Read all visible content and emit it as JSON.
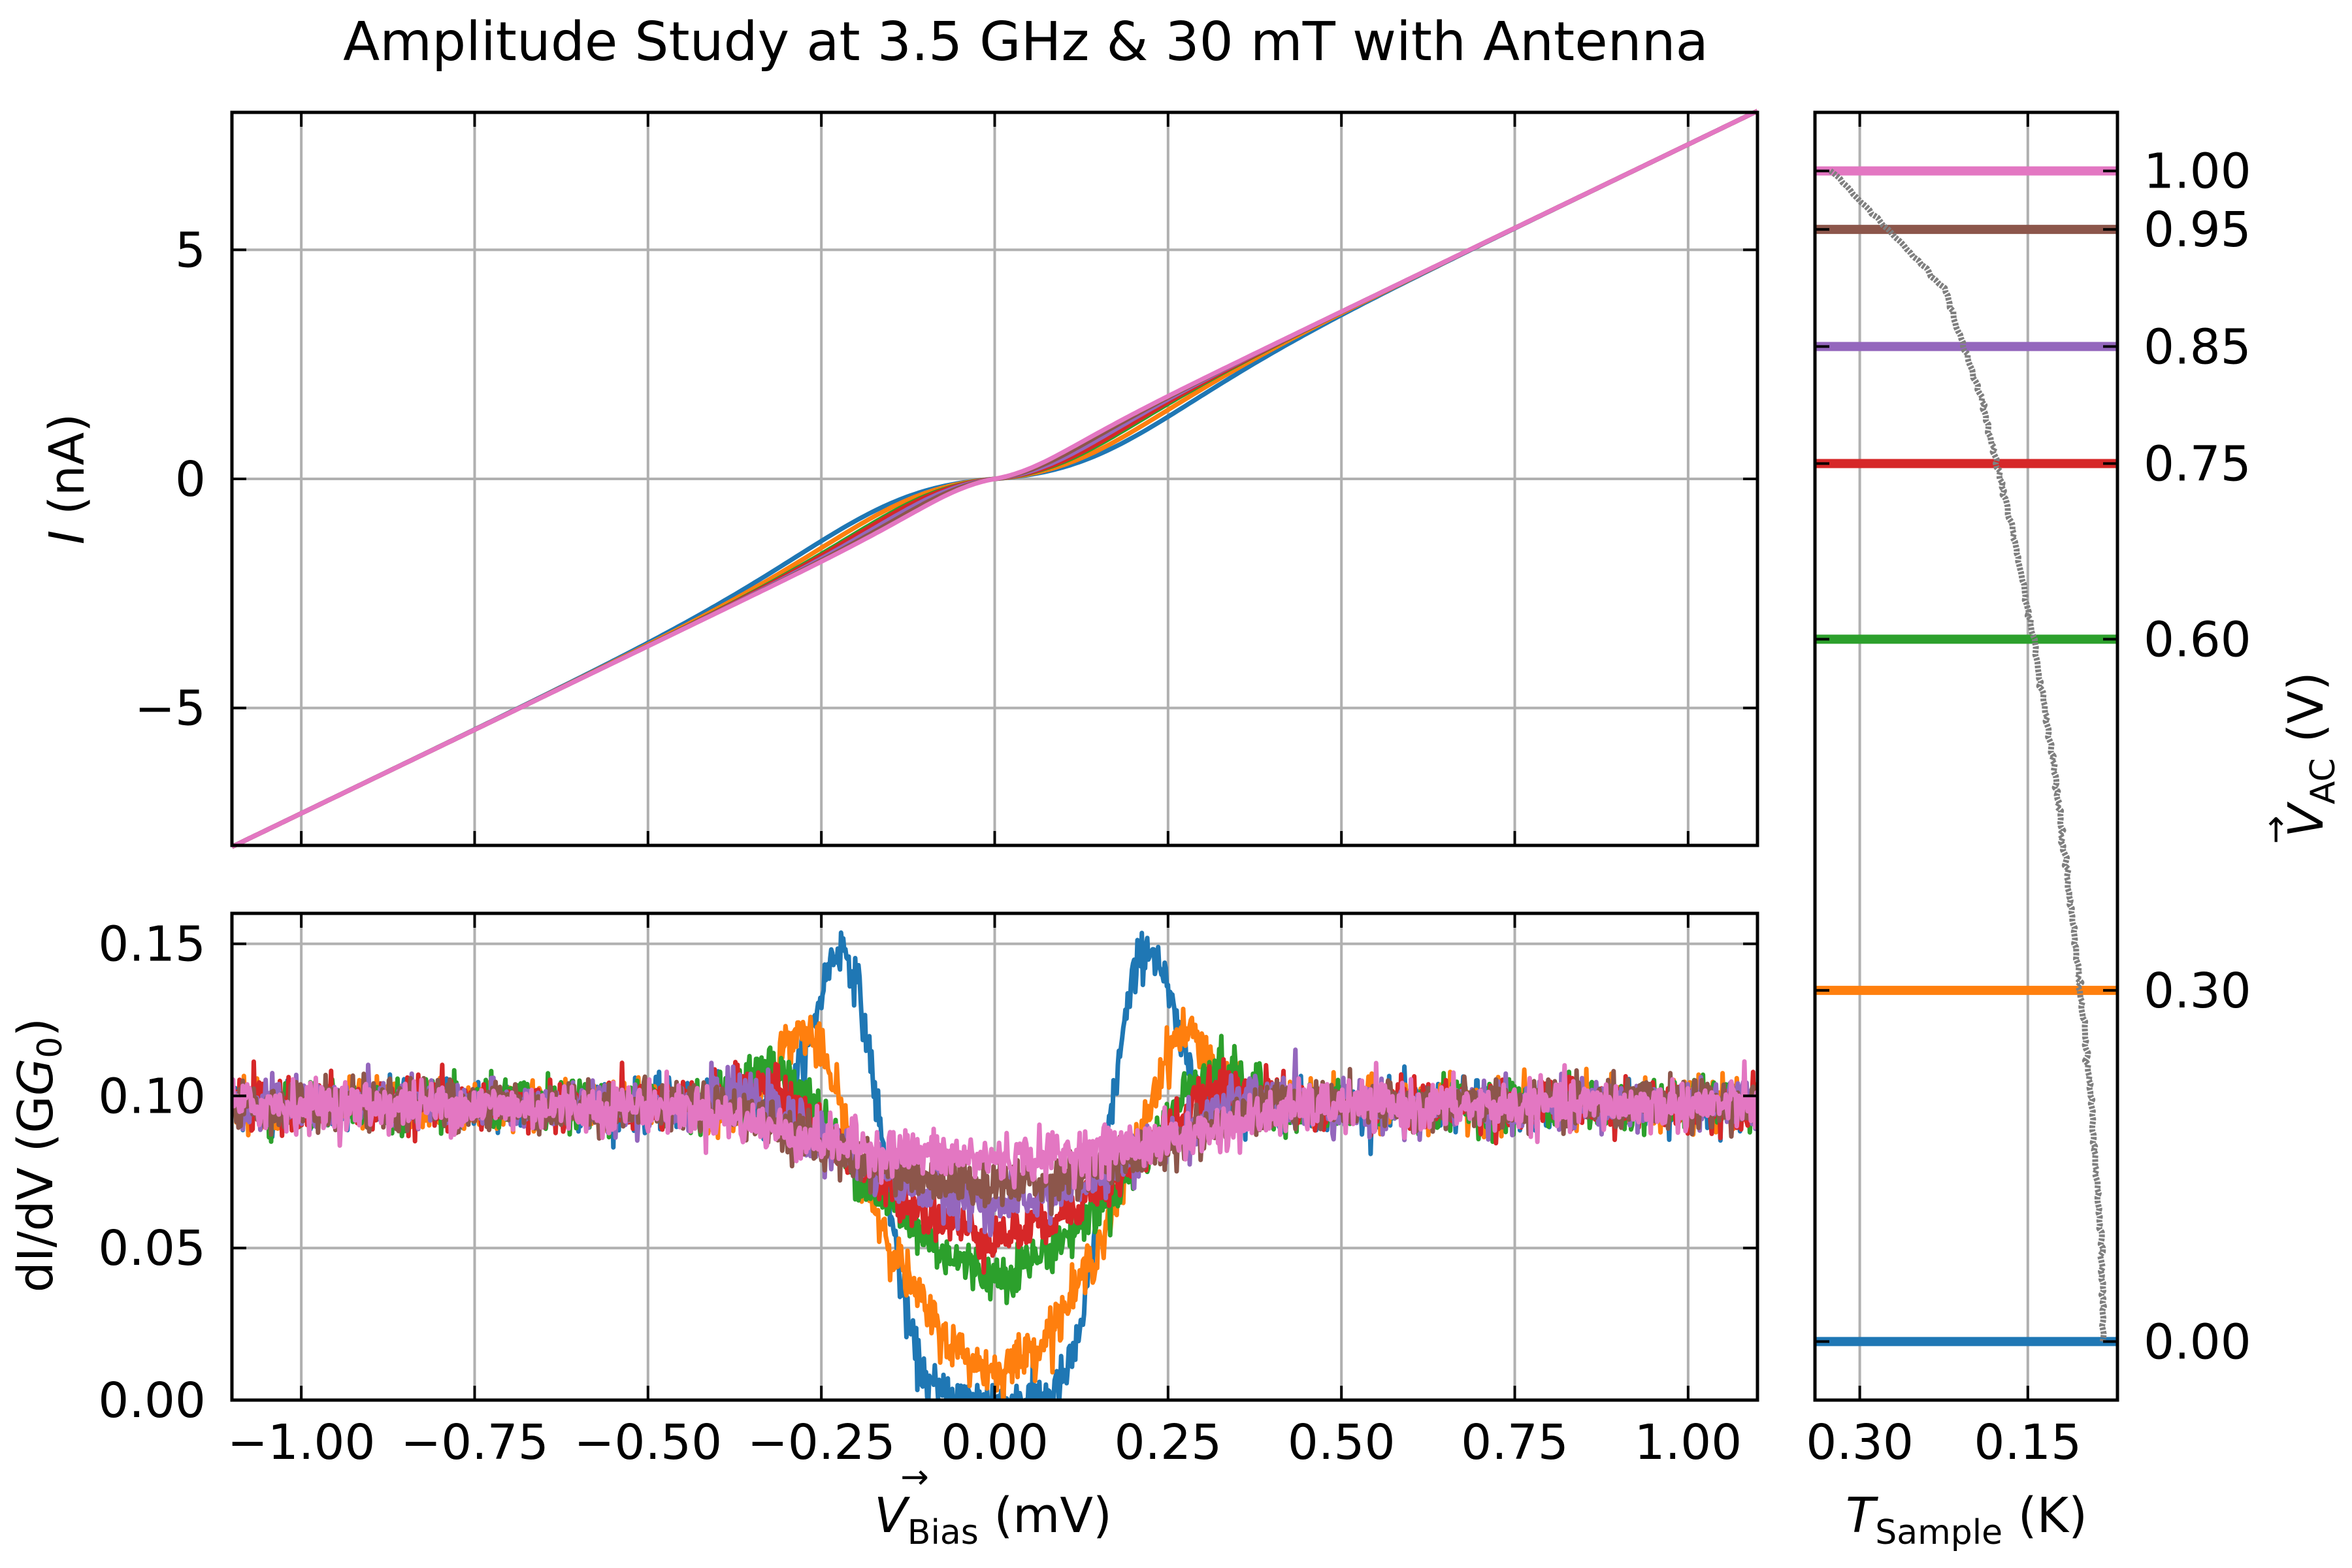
{
  "title": "Amplitude Study at 3.5 GHz & 30 mT with Antenna",
  "colors": {
    "0.00": "#1f77b4",
    "0.30": "#ff7f0e",
    "0.60": "#2ca02c",
    "0.75": "#d62728",
    "0.85": "#9467bd",
    "0.95": "#8c564b",
    "1.00": "#e377c2",
    "temperature": "#7f7f7f",
    "grid": "#b0b0b0"
  },
  "chart_data": [
    {
      "id": "iv",
      "type": "line",
      "ylabel_var": "I",
      "ylabel_unit": " (nA)",
      "xlim": [
        -1.1,
        1.1
      ],
      "ylim": [
        -8.0,
        8.0
      ],
      "xticks": [
        -1.0,
        -0.75,
        -0.5,
        -0.25,
        0.0,
        0.25,
        0.5,
        0.75,
        1.0
      ],
      "yticks": [
        -5,
        0,
        5
      ],
      "ytick_labels": [
        "−5",
        "0",
        "5"
      ],
      "grid": true,
      "slope_nA_per_mV": 7.3,
      "series": [
        {
          "vac": "0.00",
          "gap_mV": 0.16
        },
        {
          "vac": "0.30",
          "gap_mV": 0.13
        },
        {
          "vac": "0.60",
          "gap_mV": 0.1
        },
        {
          "vac": "0.75",
          "gap_mV": 0.09
        },
        {
          "vac": "0.85",
          "gap_mV": 0.07
        },
        {
          "vac": "0.95",
          "gap_mV": 0.05
        },
        {
          "vac": "1.00",
          "gap_mV": 0.03
        }
      ]
    },
    {
      "id": "didv",
      "type": "line",
      "ylabel": "dI/dV (G",
      "ylabel_sub": "0",
      "xlim": [
        -1.1,
        1.1
      ],
      "ylim": [
        0.0,
        0.16
      ],
      "xticks": [
        -1.0,
        -0.75,
        -0.5,
        -0.25,
        0.0,
        0.25,
        0.5,
        0.75,
        1.0
      ],
      "xtick_labels": [
        "−1.00",
        "−0.75",
        "−0.50",
        "−0.25",
        "0.00",
        "0.25",
        "0.50",
        "0.75",
        "1.00"
      ],
      "yticks": [
        0.0,
        0.05,
        0.1,
        0.15
      ],
      "ytick_labels": [
        "0.00",
        "0.05",
        "0.10",
        "0.15"
      ],
      "xlabel_var": "V",
      "xlabel_sub": "Bias",
      "xlabel_unit": " (mV)",
      "grid": true,
      "series": [
        {
          "vac": "0.00",
          "base": 0.097,
          "gap_center": 0.0,
          "edge_mV": 0.145,
          "edge_width": 0.018,
          "peak_mV": 0.22,
          "peak_height": 0.15,
          "peak_width": 0.05
        },
        {
          "vac": "0.30",
          "base": 0.097,
          "gap_center": 0.005,
          "edge_mV": 0.15,
          "edge_width": 0.05,
          "peak_mV": 0.27,
          "peak_height": 0.128,
          "peak_width": 0.06
        },
        {
          "vac": "0.60",
          "base": 0.097,
          "gap_center": 0.035,
          "edge_mV": 0.16,
          "edge_width": 0.07,
          "peak_mV": 0.31,
          "peak_height": 0.115,
          "peak_width": 0.07
        },
        {
          "vac": "0.75",
          "base": 0.097,
          "gap_center": 0.048,
          "edge_mV": 0.17,
          "edge_width": 0.08,
          "peak_mV": 0.33,
          "peak_height": 0.108,
          "peak_width": 0.08
        },
        {
          "vac": "0.85",
          "base": 0.097,
          "gap_center": 0.06,
          "edge_mV": 0.2,
          "edge_width": 0.09,
          "peak_mV": 0.36,
          "peak_height": 0.104,
          "peak_width": 0.09
        },
        {
          "vac": "0.95",
          "base": 0.097,
          "gap_center": 0.068,
          "edge_mV": 0.24,
          "edge_width": 0.1,
          "peak_mV": 0.4,
          "peak_height": 0.102,
          "peak_width": 0.1
        },
        {
          "vac": "1.00",
          "base": 0.097,
          "gap_center": 0.078,
          "edge_mV": 0.3,
          "edge_width": 0.11,
          "peak_mV": 0.45,
          "peak_height": 0.1,
          "peak_width": 0.11
        }
      ]
    },
    {
      "id": "temperature",
      "type": "line",
      "xlim": [
        0.34,
        0.07
      ],
      "ylim": [
        -0.05,
        1.05
      ],
      "xticks": [
        0.3,
        0.15
      ],
      "xtick_labels": [
        "0.30",
        "0.15"
      ],
      "yticks": [
        0.0,
        0.3,
        0.6,
        0.75,
        0.85,
        0.95,
        1.0
      ],
      "ytick_labels": [
        "0.00",
        "0.30",
        "0.60",
        "0.75",
        "0.85",
        "0.95",
        "1.00"
      ],
      "xlabel_var": "T",
      "xlabel_sub": "Sample",
      "xlabel_unit": " (K)",
      "ylabel_var": "V",
      "ylabel_sub": "AC",
      "ylabel_unit": " (V)",
      "grid": true,
      "hlines": [
        "0.00",
        "0.30",
        "0.60",
        "0.75",
        "0.85",
        "0.95",
        "1.00"
      ],
      "temperature_curve": {
        "vac": [
          0.0,
          0.1,
          0.2,
          0.3,
          0.4,
          0.5,
          0.6,
          0.7,
          0.8,
          0.9,
          0.95,
          1.0
        ],
        "t_K": [
          0.082,
          0.085,
          0.093,
          0.103,
          0.115,
          0.128,
          0.145,
          0.165,
          0.19,
          0.225,
          0.275,
          0.325
        ]
      }
    }
  ]
}
